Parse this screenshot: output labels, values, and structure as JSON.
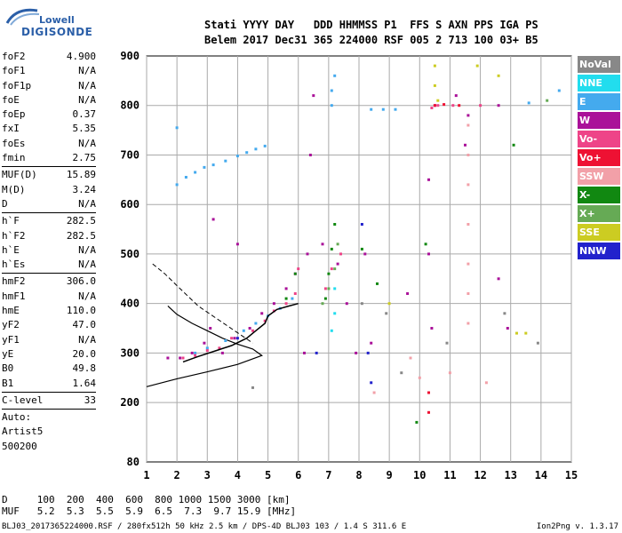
{
  "logo": {
    "line1": "Lowell",
    "line2": "DIGISONDE"
  },
  "header": {
    "line1": "Stati YYYY DAY   DDD HHMMSS P1  FFS S AXN PPS IGA PS",
    "line2": "Belem 2017 Dec31 365 224000 RSF 005 2 713 100 03+ B5"
  },
  "params": [
    {
      "label": "foF2",
      "value": "4.900"
    },
    {
      "label": "foF1",
      "value": "N/A"
    },
    {
      "label": "foF1p",
      "value": "N/A"
    },
    {
      "label": "foE",
      "value": "N/A"
    },
    {
      "label": "foEp",
      "value": "0.37"
    },
    {
      "label": "fxI",
      "value": "5.35"
    },
    {
      "label": "foEs",
      "value": "N/A"
    },
    {
      "label": "fmin",
      "value": "2.75"
    },
    {
      "sep": true
    },
    {
      "label": "MUF(D)",
      "value": "15.89"
    },
    {
      "label": "M(D)",
      "value": "3.24"
    },
    {
      "label": "D",
      "value": "N/A"
    },
    {
      "sep": true
    },
    {
      "label": "h`F",
      "value": "282.5"
    },
    {
      "label": "h`F2",
      "value": "282.5"
    },
    {
      "label": "h`E",
      "value": "N/A"
    },
    {
      "label": "h`Es",
      "value": "N/A"
    },
    {
      "sep": true
    },
    {
      "label": "hmF2",
      "value": "306.0"
    },
    {
      "label": "hmF1",
      "value": "N/A"
    },
    {
      "label": "hmE",
      "value": "110.0"
    },
    {
      "label": "yF2",
      "value": "47.0"
    },
    {
      "label": "yF1",
      "value": "N/A"
    },
    {
      "label": "yE",
      "value": "20.0"
    },
    {
      "label": "B0",
      "value": "49.8"
    },
    {
      "label": "B1",
      "value": "1.64"
    },
    {
      "sep": true
    },
    {
      "label": "C-level",
      "value": "33"
    },
    {
      "sep": true
    },
    {
      "label": "Auto:",
      "value": ""
    },
    {
      "label": "Artist5",
      "value": ""
    },
    {
      "label": "500200",
      "value": ""
    }
  ],
  "legend": [
    {
      "label": "NoVal",
      "color": "#888888"
    },
    {
      "label": "NNE",
      "color": "#22ddee"
    },
    {
      "label": "E",
      "color": "#44aaee"
    },
    {
      "label": "W",
      "color": "#aa1199"
    },
    {
      "label": "Vo-",
      "color": "#ee4488"
    },
    {
      "label": "Vo+",
      "color": "#ee1133"
    },
    {
      "label": "SSW",
      "color": "#f2a0a8"
    },
    {
      "label": "X-",
      "color": "#118811"
    },
    {
      "label": "X+",
      "color": "#66aa55"
    },
    {
      "label": "SSE",
      "color": "#cccc22"
    },
    {
      "label": "NNW",
      "color": "#2222cc"
    }
  ],
  "footer": {
    "d_line": "D     100  200  400  600  800 1000 1500 3000 [km]",
    "muf_line": "MUF   5.2  5.3  5.5  5.9  6.5  7.3  9.7 15.9 [MHz]",
    "source": "BLJ03_2017365224000.RSF / 280fx512h 50 kHz 2.5 km / DPS-4D BLJ03 103 / 1.4 S 311.6 E",
    "version": "Ion2Png v. 1.3.17"
  },
  "chart_data": {
    "type": "scatter",
    "xlim": [
      1,
      15
    ],
    "ylim": [
      80,
      900
    ],
    "xticks": [
      "1",
      "2",
      "3",
      "4",
      "5",
      "6",
      "7",
      "8",
      "9",
      "10",
      "11",
      "12",
      "13",
      "14",
      "15"
    ],
    "yticks": [
      "80",
      "200",
      "300",
      "400",
      "500",
      "600",
      "700",
      "800",
      "900"
    ],
    "grid": true,
    "legend_position": "right",
    "series": [
      {
        "name": "E",
        "color": "#44aaee",
        "points": [
          [
            2.0,
            640
          ],
          [
            2.3,
            655
          ],
          [
            2.6,
            665
          ],
          [
            2.9,
            675
          ],
          [
            3.2,
            680
          ],
          [
            3.6,
            688
          ],
          [
            4.0,
            698
          ],
          [
            4.3,
            705
          ],
          [
            4.6,
            712
          ],
          [
            4.9,
            718
          ],
          [
            2.2,
            290
          ],
          [
            2.6,
            300
          ],
          [
            3.0,
            310
          ],
          [
            3.6,
            325
          ],
          [
            4.2,
            345
          ],
          [
            4.6,
            360
          ],
          [
            5.0,
            375
          ],
          [
            5.4,
            390
          ],
          [
            5.8,
            410
          ],
          [
            8.4,
            792
          ],
          [
            8.8,
            792
          ],
          [
            9.2,
            792
          ],
          [
            7.1,
            800
          ],
          [
            7.1,
            830
          ],
          [
            7.2,
            860
          ],
          [
            13.6,
            805
          ],
          [
            14.6,
            830
          ],
          [
            2.0,
            755
          ]
        ]
      },
      {
        "name": "W",
        "color": "#aa1199",
        "points": [
          [
            1.7,
            290
          ],
          [
            2.1,
            290
          ],
          [
            2.5,
            300
          ],
          [
            2.9,
            320
          ],
          [
            3.1,
            350
          ],
          [
            3.5,
            300
          ],
          [
            3.9,
            330
          ],
          [
            4.4,
            350
          ],
          [
            4.8,
            380
          ],
          [
            5.2,
            400
          ],
          [
            5.6,
            430
          ],
          [
            5.9,
            460
          ],
          [
            6.2,
            300
          ],
          [
            6.3,
            500
          ],
          [
            6.4,
            700
          ],
          [
            6.5,
            820
          ],
          [
            6.8,
            520
          ],
          [
            7.3,
            480
          ],
          [
            7.6,
            400
          ],
          [
            7.9,
            300
          ],
          [
            8.2,
            500
          ],
          [
            8.4,
            320
          ],
          [
            10.3,
            650
          ],
          [
            10.3,
            500
          ],
          [
            10.4,
            350
          ],
          [
            10.5,
            800
          ],
          [
            11.2,
            820
          ],
          [
            11.6,
            780
          ],
          [
            12.6,
            800
          ],
          [
            12.6,
            450
          ],
          [
            12.9,
            350
          ],
          [
            11.5,
            720
          ],
          [
            9.6,
            420
          ],
          [
            3.2,
            570
          ],
          [
            4.0,
            520
          ]
        ]
      },
      {
        "name": "Vo-",
        "color": "#ee4488",
        "points": [
          [
            2.2,
            290
          ],
          [
            2.6,
            295
          ],
          [
            3.0,
            305
          ],
          [
            3.4,
            310
          ],
          [
            3.8,
            330
          ],
          [
            4.5,
            345
          ],
          [
            4.9,
            365
          ],
          [
            5.2,
            385
          ],
          [
            5.6,
            400
          ],
          [
            5.9,
            420
          ],
          [
            6.0,
            470
          ],
          [
            6.9,
            430
          ],
          [
            7.1,
            470
          ],
          [
            7.4,
            500
          ],
          [
            10.4,
            795
          ],
          [
            10.6,
            800
          ],
          [
            11.1,
            800
          ],
          [
            12.0,
            800
          ]
        ]
      },
      {
        "name": "Vo+",
        "color": "#ee1133",
        "points": [
          [
            10.5,
            800
          ],
          [
            10.8,
            802
          ],
          [
            11.3,
            800
          ],
          [
            10.3,
            220
          ],
          [
            10.3,
            180
          ]
        ]
      },
      {
        "name": "SSW",
        "color": "#f2a0a8",
        "points": [
          [
            11.6,
            760
          ],
          [
            11.6,
            700
          ],
          [
            11.6,
            640
          ],
          [
            11.6,
            560
          ],
          [
            11.6,
            480
          ],
          [
            11.6,
            420
          ],
          [
            11.6,
            360
          ],
          [
            10.0,
            250
          ],
          [
            9.7,
            290
          ],
          [
            8.5,
            220
          ],
          [
            12.2,
            240
          ],
          [
            11.0,
            260
          ]
        ]
      },
      {
        "name": "X-",
        "color": "#118811",
        "points": [
          [
            6.9,
            410
          ],
          [
            7.0,
            460
          ],
          [
            7.1,
            510
          ],
          [
            7.2,
            560
          ],
          [
            5.9,
            460
          ],
          [
            5.6,
            410
          ],
          [
            8.6,
            440
          ],
          [
            8.1,
            510
          ],
          [
            10.2,
            520
          ],
          [
            9.9,
            160
          ],
          [
            13.1,
            720
          ]
        ]
      },
      {
        "name": "X+",
        "color": "#66aa55",
        "points": [
          [
            7.3,
            520
          ],
          [
            7.2,
            470
          ],
          [
            7.0,
            430
          ],
          [
            6.8,
            400
          ],
          [
            14.2,
            810
          ]
        ]
      },
      {
        "name": "SSE",
        "color": "#cccc22",
        "points": [
          [
            10.5,
            880
          ],
          [
            10.5,
            840
          ],
          [
            10.6,
            810
          ],
          [
            11.9,
            880
          ],
          [
            12.6,
            860
          ],
          [
            9.0,
            400
          ],
          [
            13.5,
            340
          ],
          [
            13.2,
            340
          ]
        ]
      },
      {
        "name": "NNW",
        "color": "#2222cc",
        "points": [
          [
            8.3,
            300
          ],
          [
            8.1,
            560
          ],
          [
            8.4,
            240
          ],
          [
            6.6,
            300
          ],
          [
            4.0,
            330
          ]
        ]
      },
      {
        "name": "NNE",
        "color": "#22ddee",
        "points": [
          [
            7.2,
            430
          ],
          [
            7.2,
            380
          ],
          [
            7.1,
            345
          ]
        ]
      },
      {
        "name": "NoVal",
        "color": "#888888",
        "points": [
          [
            8.1,
            400
          ],
          [
            8.9,
            380
          ],
          [
            9.4,
            260
          ],
          [
            10.9,
            320
          ],
          [
            12.8,
            380
          ],
          [
            13.9,
            320
          ],
          [
            4.5,
            230
          ]
        ]
      }
    ],
    "profile_solid": [
      [
        1.0,
        232
      ],
      [
        2.0,
        248
      ],
      [
        3.0,
        262
      ],
      [
        4.0,
        277
      ],
      [
        4.8,
        295
      ],
      [
        4.5,
        308
      ],
      [
        4.0,
        318
      ],
      [
        3.5,
        330
      ],
      [
        3.0,
        345
      ],
      [
        2.5,
        360
      ],
      [
        2.0,
        378
      ],
      [
        1.7,
        395
      ]
    ],
    "profile_dashed": [
      [
        1.2,
        480
      ],
      [
        1.6,
        460
      ],
      [
        2.1,
        430
      ],
      [
        2.7,
        395
      ],
      [
        3.3,
        370
      ],
      [
        3.9,
        345
      ],
      [
        4.5,
        320
      ]
    ],
    "trace_line": [
      [
        2.2,
        282
      ],
      [
        2.7,
        293
      ],
      [
        3.3,
        305
      ],
      [
        3.8,
        315
      ],
      [
        4.3,
        330
      ],
      [
        4.6,
        345
      ],
      [
        4.9,
        360
      ],
      [
        5.0,
        375
      ],
      [
        5.3,
        388
      ],
      [
        5.7,
        395
      ],
      [
        6.0,
        400
      ]
    ]
  }
}
